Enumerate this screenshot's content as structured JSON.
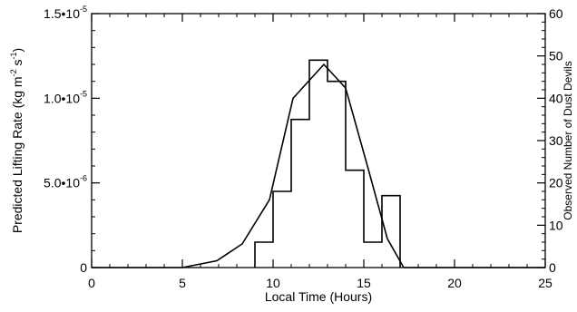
{
  "chart_data": {
    "type": "line",
    "xlabel": "Local Time (Hours)",
    "ylabel_left": {
      "prefix": "Predicted Lifting Rate (kg m",
      "exp1": "-2",
      "mid": " s",
      "exp2": "-1",
      "suffix": ")"
    },
    "ylabel_right": "Observed Number of Dust Devils",
    "xlim": [
      0,
      25
    ],
    "ylim_left": [
      0,
      1.5e-05
    ],
    "ylim_right": [
      0,
      60
    ],
    "x_ticks": [
      0,
      5,
      10,
      15,
      20,
      25
    ],
    "x_tick_labels": [
      "0",
      "5",
      "10",
      "15",
      "20",
      "25"
    ],
    "y_left_ticks": [
      {
        "value": 0,
        "mantissa": "0",
        "exp": ""
      },
      {
        "value": 5e-06,
        "mantissa": "5.0•10",
        "exp": "-6"
      },
      {
        "value": 1e-05,
        "mantissa": "1.0•10",
        "exp": "-5"
      },
      {
        "value": 1.5e-05,
        "mantissa": "1.5•10",
        "exp": "-5"
      }
    ],
    "y_right_ticks": [
      0,
      10,
      20,
      30,
      40,
      50,
      60
    ],
    "y_right_tick_labels": [
      "0",
      "10",
      "20",
      "30",
      "40",
      "50",
      "60"
    ],
    "series": [
      {
        "axis": "left",
        "x": [
          0,
          5,
          6.9,
          8.3,
          9.8,
          11.1,
          12.8,
          14.0,
          15.2,
          16.3,
          17.2,
          25
        ],
        "y": [
          0,
          0,
          4e-07,
          1.4e-06,
          4e-06,
          1e-05,
          1.2e-05,
          1.06e-05,
          6e-06,
          1.7e-06,
          0,
          0
        ]
      },
      {
        "axis": "right",
        "style": "step",
        "bin_edges": [
          9,
          10,
          11,
          12,
          13,
          14,
          15,
          16,
          17
        ],
        "values": [
          6,
          18,
          35,
          49,
          44,
          23,
          6,
          17
        ]
      }
    ]
  }
}
